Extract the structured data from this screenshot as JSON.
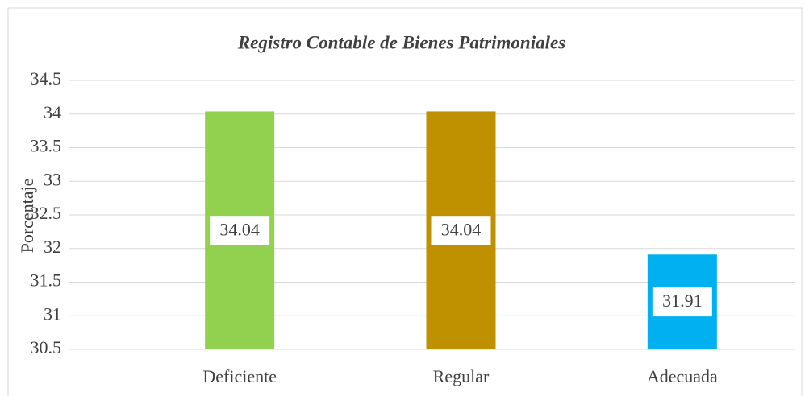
{
  "chart_data": {
    "type": "bar",
    "title": "Registro Contable de Bienes Patrimoniales",
    "y_label": "Porcentaje",
    "categories": [
      "Deficiente",
      "Regular",
      "Adecuada"
    ],
    "values": [
      34.04,
      34.04,
      31.91
    ],
    "colors": [
      "#92d050",
      "#bf9000",
      "#00b0f0"
    ],
    "ylim": [
      30.5,
      34.5
    ],
    "yticks": [
      30.5,
      31,
      31.5,
      32,
      32.5,
      33,
      33.5,
      34,
      34.5
    ],
    "grid": true
  }
}
